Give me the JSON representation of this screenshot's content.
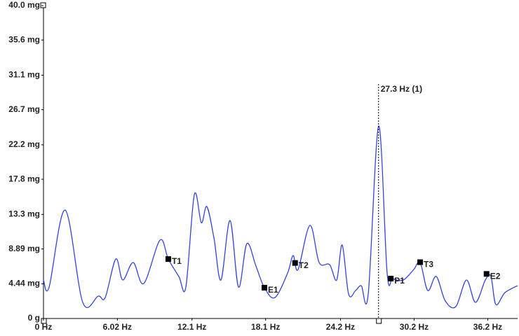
{
  "chart_data": {
    "type": "line",
    "x": [
      0,
      0.46,
      1.77,
      3.2,
      4.46,
      5.03,
      5.89,
      6.46,
      7.31,
      8.17,
      9.49,
      10.17,
      11.03,
      11.6,
      12.29,
      12.86,
      13.31,
      13.89,
      14.46,
      15.2,
      15.89,
      16.57,
      17.31,
      18.0,
      18.86,
      19.89,
      20.34,
      20.74,
      21.71,
      22.46,
      23.31,
      23.89,
      24.34,
      24.86,
      25.43,
      25.89,
      26.46,
      27.31,
      28.0,
      28.46,
      29.31,
      30.17,
      30.69,
      31.31,
      32.0,
      32.74,
      33.6,
      34.46,
      35.2,
      36.0,
      36.46,
      36.86,
      37.6,
      38.63
    ],
    "series": [
      {
        "color": "#3344dd",
        "values": [
          4.92,
          4.02,
          13.86,
          2.06,
          2.86,
          2.68,
          7.6,
          4.92,
          7.16,
          4.47,
          10.02,
          7.6,
          5.37,
          4.02,
          15.83,
          12.25,
          14.31,
          10.29,
          4.92,
          12.52,
          4.02,
          9.57,
          6.71,
          3.94,
          2.68,
          5.81,
          8.05,
          6.26,
          11.9,
          7.16,
          6.89,
          4.92,
          9.39,
          3.13,
          3.58,
          4.2,
          3.13,
          24.6,
          5.81,
          5.1,
          4.92,
          6.26,
          7.16,
          3.58,
          5.37,
          2.24,
          1.52,
          4.92,
          2.06,
          4.92,
          5.37,
          1.79,
          3.31,
          4.2
        ]
      }
    ],
    "markers": [
      {
        "label": "T1",
        "x": 10.17,
        "y": 7.6
      },
      {
        "label": "E1",
        "x": 18.0,
        "y": 3.94
      },
      {
        "label": "T2",
        "x": 20.5,
        "y": 7.1
      },
      {
        "label": "P1",
        "x": 28.3,
        "y": 5.1
      },
      {
        "label": "T3",
        "x": 30.69,
        "y": 7.2
      },
      {
        "label": "E2",
        "x": 36.1,
        "y": 5.7
      }
    ],
    "cursor": {
      "label": "27.3 Hz (1)",
      "x": 27.3
    },
    "xlim": [
      0,
      38.63
    ],
    "ylim": [
      0,
      40
    ],
    "xticks": [
      {
        "value": 0,
        "label": "0 Hz"
      },
      {
        "value": 6.02,
        "label": "6.02 Hz"
      },
      {
        "value": 12.1,
        "label": "12.1 Hz"
      },
      {
        "value": 18.1,
        "label": "18.1 Hz"
      },
      {
        "value": 24.2,
        "label": "24.2 Hz"
      },
      {
        "value": 30.2,
        "label": "30.2 Hz"
      },
      {
        "value": 36.2,
        "label": "36.2 Hz"
      }
    ],
    "yticks": [
      {
        "value": 0,
        "label": "0 g"
      },
      {
        "value": 4.44,
        "label": "4.44 mg"
      },
      {
        "value": 8.89,
        "label": "8.89 mg"
      },
      {
        "value": 13.3,
        "label": "13.3 mg"
      },
      {
        "value": 17.8,
        "label": "17.8 mg"
      },
      {
        "value": 22.2,
        "label": "22.2 mg"
      },
      {
        "value": 26.7,
        "label": "26.7 mg"
      },
      {
        "value": 31.1,
        "label": "31.1 mg"
      },
      {
        "value": 35.6,
        "label": "35.6 mg"
      },
      {
        "value": 40,
        "label": "40.0 mg"
      }
    ]
  }
}
